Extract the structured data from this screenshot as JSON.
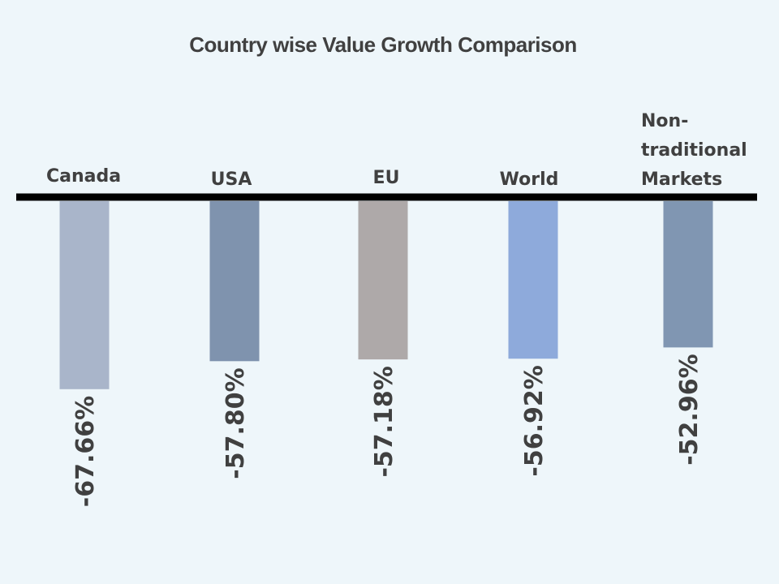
{
  "chart_data": {
    "type": "bar",
    "title": "Country wise Value Growth Comparison",
    "xlabel": "",
    "ylabel": "",
    "categories": [
      "Canada",
      "USA",
      "EU",
      "World",
      "Non-traditional Markets"
    ],
    "category_label_lines": [
      [
        "Canada"
      ],
      [
        "USA"
      ],
      [
        "EU"
      ],
      [
        "World"
      ],
      [
        "Non-",
        "traditional",
        "Markets"
      ]
    ],
    "values": [
      -67.66,
      -57.8,
      -57.18,
      -56.92,
      -52.96
    ],
    "data_labels": [
      "-67.66%",
      "-57.80%",
      "-57.18%",
      "-56.92%",
      "-52.96%"
    ],
    "bar_colors": [
      "#A9B5CA",
      "#7F93AE",
      "#AEA9A9",
      "#8EAADB",
      "#8096B2"
    ],
    "axis_color": "#000000",
    "ylim": [
      -70,
      0
    ],
    "grid": false,
    "legend": "none",
    "data_label_orientation": "vertical"
  }
}
